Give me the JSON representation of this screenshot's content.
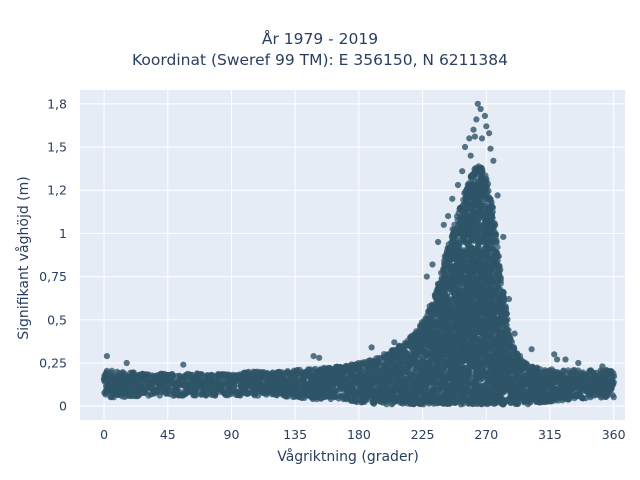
{
  "chart_data": {
    "type": "scatter",
    "title": "År 1979 - 2019",
    "subtitle": "Koordinat (Sweref 99 TM): E 356150, N 6211384",
    "xlabel": "Vågriktning (grader)",
    "ylabel": "Signifikant våghöjd (m)",
    "xlim": [
      -17,
      368
    ],
    "ylim": [
      -0.08,
      1.83
    ],
    "x_ticks": [
      0,
      45,
      90,
      135,
      180,
      225,
      270,
      315,
      360
    ],
    "x_tick_labels": [
      "0",
      "45",
      "90",
      "135",
      "180",
      "225",
      "270",
      "315",
      "360"
    ],
    "y_ticks": [
      0,
      0.25,
      0.5,
      0.75,
      1,
      1.25,
      1.5,
      1.75
    ],
    "y_tick_labels": [
      "0",
      "0,25",
      "0,5",
      "0,75",
      "1",
      "1,2",
      "1,5",
      "1,8"
    ],
    "grid": true,
    "legend": "none",
    "marker_color": "#2f5468",
    "plot_background": "#e5ecf6",
    "envelope": {
      "direction": [
        0,
        15,
        30,
        45,
        60,
        75,
        90,
        105,
        120,
        135,
        150,
        165,
        180,
        195,
        205,
        215,
        222,
        228,
        234,
        240,
        246,
        252,
        258,
        262,
        266,
        270,
        274,
        278,
        282,
        286,
        290,
        295,
        300,
        310,
        320,
        330,
        340,
        350,
        360
      ],
      "upper": [
        0.21,
        0.2,
        0.19,
        0.19,
        0.19,
        0.19,
        0.19,
        0.2,
        0.2,
        0.21,
        0.22,
        0.23,
        0.25,
        0.29,
        0.33,
        0.39,
        0.45,
        0.54,
        0.66,
        0.84,
        1.02,
        1.18,
        1.32,
        1.38,
        1.4,
        1.33,
        1.18,
        0.94,
        0.68,
        0.45,
        0.34,
        0.27,
        0.24,
        0.22,
        0.21,
        0.21,
        0.21,
        0.21,
        0.21
      ],
      "lower": [
        0.05,
        0.05,
        0.06,
        0.06,
        0.06,
        0.06,
        0.06,
        0.06,
        0.06,
        0.05,
        0.04,
        0.04,
        0.02,
        0.01,
        0.01,
        0.01,
        0.01,
        0.01,
        0.01,
        0.01,
        0.01,
        0.01,
        0.01,
        0.01,
        0.01,
        0.01,
        0.01,
        0.01,
        0.01,
        0.01,
        0.01,
        0.01,
        0.01,
        0.02,
        0.03,
        0.04,
        0.04,
        0.05,
        0.05
      ]
    },
    "outliers": [
      {
        "x": 2,
        "y": 0.29
      },
      {
        "x": 16,
        "y": 0.25
      },
      {
        "x": 56,
        "y": 0.24
      },
      {
        "x": 148,
        "y": 0.29
      },
      {
        "x": 152,
        "y": 0.28
      },
      {
        "x": 189,
        "y": 0.34
      },
      {
        "x": 205,
        "y": 0.37
      },
      {
        "x": 228,
        "y": 0.75
      },
      {
        "x": 232,
        "y": 0.82
      },
      {
        "x": 236,
        "y": 0.95
      },
      {
        "x": 240,
        "y": 1.05
      },
      {
        "x": 243,
        "y": 1.1
      },
      {
        "x": 246,
        "y": 1.2
      },
      {
        "x": 250,
        "y": 1.28
      },
      {
        "x": 253,
        "y": 1.36
      },
      {
        "x": 255,
        "y": 1.5
      },
      {
        "x": 258,
        "y": 1.55
      },
      {
        "x": 259,
        "y": 1.45
      },
      {
        "x": 261,
        "y": 1.6
      },
      {
        "x": 262,
        "y": 1.56
      },
      {
        "x": 263,
        "y": 1.66
      },
      {
        "x": 264,
        "y": 1.75
      },
      {
        "x": 266,
        "y": 1.72
      },
      {
        "x": 267,
        "y": 1.55
      },
      {
        "x": 269,
        "y": 1.68
      },
      {
        "x": 270,
        "y": 1.62
      },
      {
        "x": 272,
        "y": 1.58
      },
      {
        "x": 273,
        "y": 1.49
      },
      {
        "x": 275,
        "y": 1.42
      },
      {
        "x": 278,
        "y": 1.22
      },
      {
        "x": 282,
        "y": 0.98
      },
      {
        "x": 286,
        "y": 0.62
      },
      {
        "x": 290,
        "y": 0.42
      },
      {
        "x": 302,
        "y": 0.33
      },
      {
        "x": 318,
        "y": 0.3
      },
      {
        "x": 320,
        "y": 0.27
      },
      {
        "x": 326,
        "y": 0.27
      },
      {
        "x": 335,
        "y": 0.25
      },
      {
        "x": 352,
        "y": 0.23
      }
    ]
  }
}
